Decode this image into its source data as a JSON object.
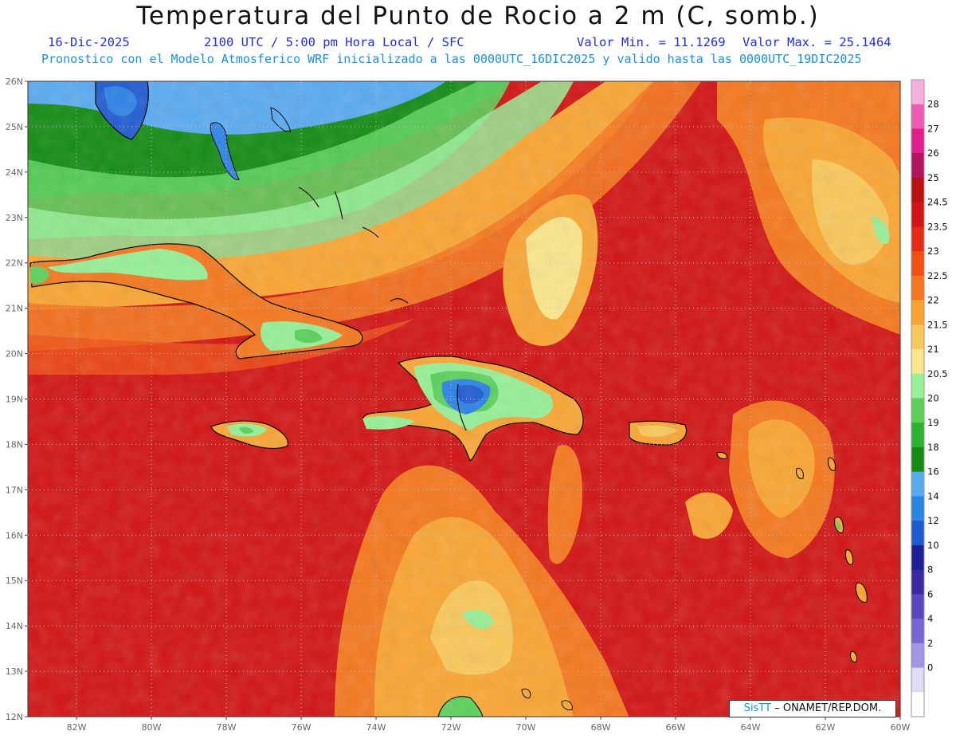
{
  "title": "Temperatura del Punto de Rocio a 2 m (C, somb.)",
  "date": "16-Dic-2025",
  "time_info": "2100 UTC / 5:00 pm Hora Local / SFC",
  "min_label": "Valor Min. = 11.1269",
  "max_label": "Valor Max. = 25.1464",
  "model_info": "Pronostico con el Modelo Atmosferico WRF inicializado a las 0000UTC_16DIC2025 y valido hasta las  0000UTC_19DIC2025",
  "watermark": {
    "brand": "SisTT",
    "text": "– ONAMET/REP.DOM."
  },
  "lat_labels": [
    "26N",
    "25N",
    "24N",
    "23N",
    "22N",
    "21N",
    "20N",
    "19N",
    "18N",
    "17N",
    "16N",
    "15N",
    "14N",
    "13N",
    "12N"
  ],
  "lon_labels": [
    "82W",
    "80W",
    "78W",
    "76W",
    "74W",
    "72W",
    "70W",
    "68W",
    "66W",
    "64W",
    "62W",
    "60W"
  ],
  "legend": [
    {
      "label": "28",
      "color": "#f5b0dc"
    },
    {
      "label": "27",
      "color": "#ee5ab4"
    },
    {
      "label": "26",
      "color": "#e21e8c"
    },
    {
      "label": "25",
      "color": "#b4145a"
    },
    {
      "label": "24.5",
      "color": "#be0f0f"
    },
    {
      "label": "23.5",
      "color": "#d21414"
    },
    {
      "label": "23",
      "color": "#e62d14"
    },
    {
      "label": "22.5",
      "color": "#f05014"
    },
    {
      "label": "22",
      "color": "#f5781e"
    },
    {
      "label": "21.5",
      "color": "#faa532"
    },
    {
      "label": "21",
      "color": "#fac85a"
    },
    {
      "label": "20.5",
      "color": "#fae68c"
    },
    {
      "label": "20",
      "color": "#96f096"
    },
    {
      "label": "19",
      "color": "#5ad25a"
    },
    {
      "label": "18",
      "color": "#2db42d"
    },
    {
      "label": "16",
      "color": "#148c14"
    },
    {
      "label": "14",
      "color": "#5aaaf0"
    },
    {
      "label": "12",
      "color": "#2d82e6"
    },
    {
      "label": "10",
      "color": "#1e5ad2"
    },
    {
      "label": "8",
      "color": "#1e1e96"
    },
    {
      "label": "6",
      "color": "#3c28a5"
    },
    {
      "label": "4",
      "color": "#5a46be"
    },
    {
      "label": "2",
      "color": "#7864d2"
    },
    {
      "label": "0",
      "color": "#a096e6"
    },
    {
      "label": "",
      "color": "#dcdcf5"
    },
    {
      "label": "",
      "color": "#ffffff"
    }
  ]
}
